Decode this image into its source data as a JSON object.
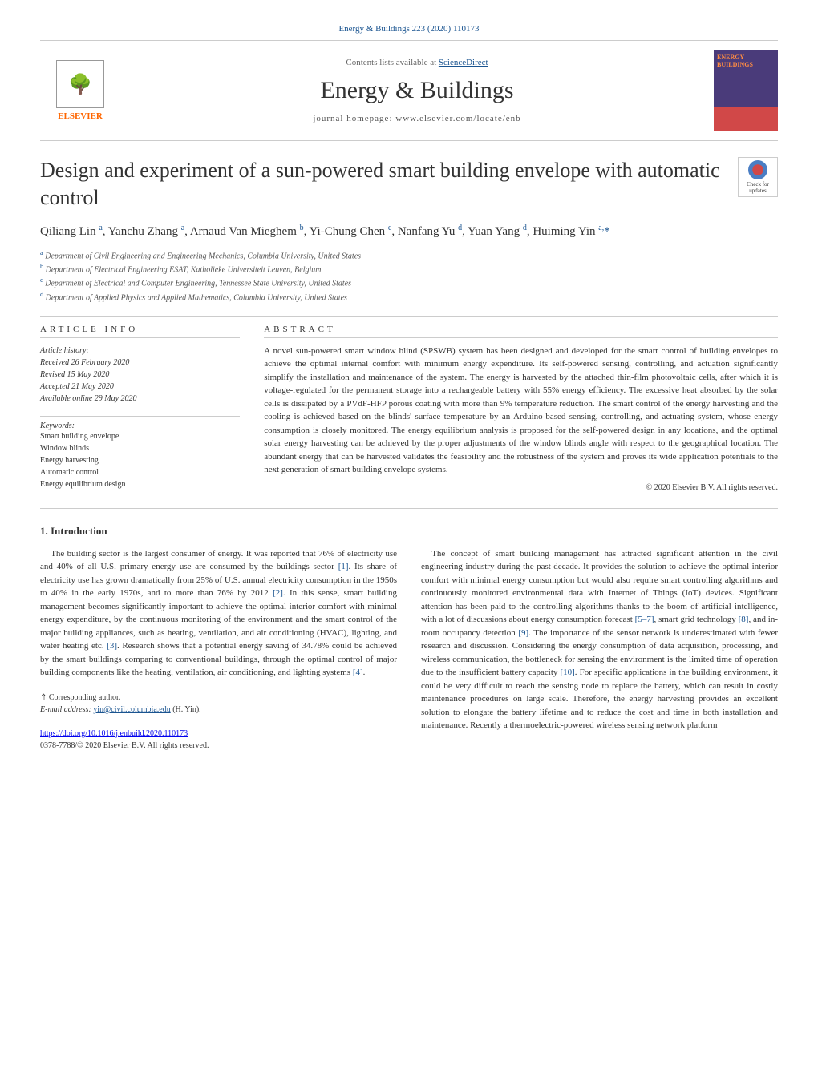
{
  "header": {
    "journal_ref": "Energy & Buildings 223 (2020) 110173",
    "contents_available": "Contents lists available at ",
    "sciencedirect": "ScienceDirect",
    "journal_name": "Energy & Buildings",
    "homepage": "journal homepage: www.elsevier.com/locate/enb",
    "publisher": "ELSEVIER",
    "cover_title": "ENERGY BUILDINGS"
  },
  "title": "Design and experiment of a sun-powered smart building envelope with automatic control",
  "check_updates": "Check for updates",
  "authors_html": "Qiliang Lin <sup>a</sup>, Yanchu Zhang <sup>a</sup>, Arnaud Van Mieghem <sup>b</sup>, Yi-Chung Chen <sup>c</sup>, Nanfang Yu <sup>d</sup>, Yuan Yang <sup>d</sup>, Huiming Yin <sup>a,</sup><span class='corresp'>*</span>",
  "affiliations": [
    {
      "sup": "a",
      "text": "Department of Civil Engineering and Engineering Mechanics, Columbia University, United States"
    },
    {
      "sup": "b",
      "text": "Department of Electrical Engineering ESAT, Katholieke Universiteit Leuven, Belgium"
    },
    {
      "sup": "c",
      "text": "Department of Electrical and Computer Engineering, Tennessee State University, United States"
    },
    {
      "sup": "d",
      "text": "Department of Applied Physics and Applied Mathematics, Columbia University, United States"
    }
  ],
  "article_info": {
    "heading": "article info",
    "history_label": "Article history:",
    "history": [
      "Received 26 February 2020",
      "Revised 15 May 2020",
      "Accepted 21 May 2020",
      "Available online 29 May 2020"
    ],
    "keywords_label": "Keywords:",
    "keywords": [
      "Smart building envelope",
      "Window blinds",
      "Energy harvesting",
      "Automatic control",
      "Energy equilibrium design"
    ]
  },
  "abstract": {
    "heading": "abstract",
    "text": "A novel sun-powered smart window blind (SPSWB) system has been designed and developed for the smart control of building envelopes to achieve the optimal internal comfort with minimum energy expenditure. Its self-powered sensing, controlling, and actuation significantly simplify the installation and maintenance of the system. The energy is harvested by the attached thin-film photovoltaic cells, after which it is voltage-regulated for the permanent storage into a rechargeable battery with 55% energy efficiency. The excessive heat absorbed by the solar cells is dissipated by a PVdF-HFP porous coating with more than 9% temperature reduction. The smart control of the energy harvesting and the cooling is achieved based on the blinds' surface temperature by an Arduino-based sensing, controlling, and actuating system, whose energy consumption is closely monitored. The energy equilibrium analysis is proposed for the self-powered design in any locations, and the optimal solar energy harvesting can be achieved by the proper adjustments of the window blinds angle with respect to the geographical location. The abundant energy that can be harvested validates the feasibility and the robustness of the system and proves its wide application potentials to the next generation of smart building envelope systems.",
    "copyright": "© 2020 Elsevier B.V. All rights reserved."
  },
  "introduction": {
    "heading": "1. Introduction",
    "para1": "The building sector is the largest consumer of energy. It was reported that 76% of electricity use and 40% of all U.S. primary energy use are consumed by the buildings sector [1]. Its share of electricity use has grown dramatically from 25% of U.S. annual electricity consumption in the 1950s to 40% in the early 1970s, and to more than 76% by 2012 [2]. In this sense, smart building management becomes significantly important to achieve the optimal interior comfort with minimal energy expenditure, by the continuous monitoring of the environment and the smart control of the major building appliances, such as heating, ventilation, and air conditioning (HVAC), lighting, and water heating etc. [3]. Research shows that a potential energy saving of 34.78% could be achieved by the smart buildings comparing to conventional buildings, through the optimal control of major building components like the heating, ventilation, air conditioning, and lighting systems [4].",
    "para2": "The concept of smart building management has attracted significant attention in the civil engineering industry during the past decade. It provides the solution to achieve the optimal interior comfort with minimal energy consumption but would also require smart controlling algorithms and continuously monitored environmental data with Internet of Things (IoT) devices. Significant attention has been paid to the controlling algorithms thanks to the boom of artificial intelligence, with a lot of discussions about energy consumption forecast [5–7], smart grid technology [8], and in-room occupancy detection [9]. The importance of the sensor network is underestimated with fewer research and discussion. Considering the energy consumption of data acquisition, processing, and wireless communication, the bottleneck for sensing the environment is the limited time of operation due to the insufficient battery capacity [10]. For specific applications in the building environment, it could be very difficult to reach the sensing node to replace the battery, which can result in costly maintenance procedures on large scale. Therefore, the energy harvesting provides an excellent solution to elongate the battery lifetime and to reduce the cost and time in both installation and maintenance. Recently a thermoelectric-powered wireless sensing network platform"
  },
  "corresp_note": {
    "symbol": "⇑ Corresponding author.",
    "email_label": "E-mail address: ",
    "email": "yin@civil.columbia.edu",
    "name": " (H. Yin)."
  },
  "footer": {
    "doi": "https://doi.org/10.1016/j.enbuild.2020.110173",
    "copyright": "0378-7788/© 2020 Elsevier B.V. All rights reserved."
  }
}
